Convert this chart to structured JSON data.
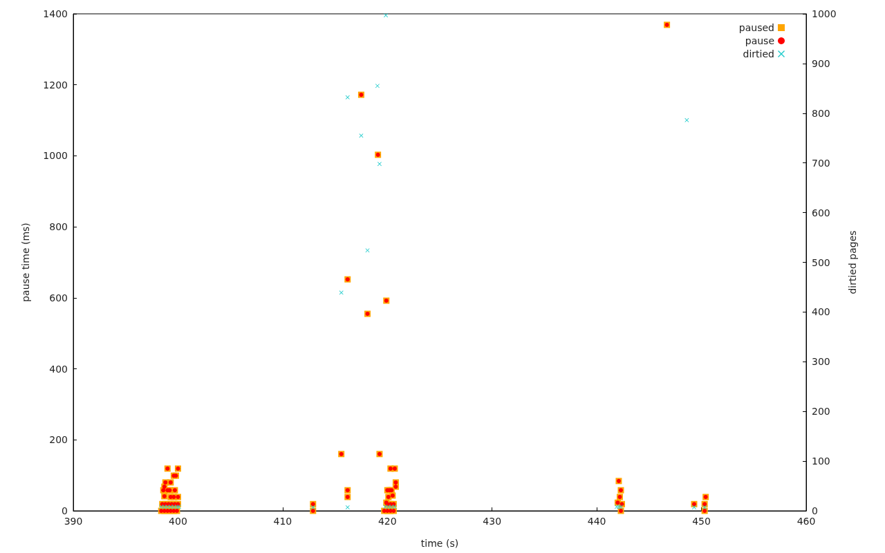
{
  "chart_data": {
    "type": "scatter",
    "xlabel": "time (s)",
    "ylabel": "pause time (ms)",
    "y2label": "dirtied pages",
    "xlim": [
      390,
      460
    ],
    "xticks": [
      390,
      400,
      410,
      420,
      430,
      440,
      450,
      460
    ],
    "ylim": [
      0,
      1400
    ],
    "yticks": [
      0,
      200,
      400,
      600,
      800,
      1000,
      1200,
      1400
    ],
    "y2lim": [
      0,
      1000
    ],
    "y2ticks": [
      0,
      100,
      200,
      300,
      400,
      500,
      600,
      700,
      800,
      900,
      1000
    ],
    "grid": false,
    "legend": "top right",
    "series": [
      {
        "name": "paused",
        "color": "#ffa500",
        "marker": "square",
        "x": [
          399.0,
          400.0,
          399.6,
          399.8,
          398.8,
          399.3,
          398.7,
          398.6,
          399.0,
          399.2,
          399.7,
          398.7,
          399.3,
          399.6,
          400.0,
          398.5,
          398.8,
          399.1,
          399.4,
          399.7,
          400.0,
          398.4,
          398.7,
          399.0,
          399.3,
          399.6,
          399.9,
          412.9,
          412.9,
          415.6,
          416.2,
          416.2,
          416.2,
          417.5,
          418.1,
          419.1,
          419.25,
          419.9,
          420.3,
          420.7,
          420.8,
          420.8,
          420.0,
          420.2,
          420.4,
          420.1,
          420.5,
          419.9,
          420.0,
          420.3,
          420.6,
          419.7,
          420.0,
          420.3,
          420.6,
          442.1,
          442.3,
          442.2,
          442.0,
          442.4,
          442.3,
          446.7,
          449.3,
          450.4,
          450.3,
          450.3
        ],
        "values": [
          119,
          119,
          99,
          99,
          80,
          80,
          68,
          58,
          58,
          58,
          58,
          41,
          39,
          39,
          39,
          19,
          19,
          19,
          19,
          19,
          19,
          0,
          0,
          0,
          0,
          0,
          0,
          19,
          0,
          160,
          652,
          58,
          39,
          1172,
          555,
          1003,
          160,
          592,
          119,
          119,
          80,
          68,
          58,
          58,
          58,
          39,
          43,
          23,
          19,
          19,
          19,
          0,
          0,
          0,
          0,
          84,
          58,
          39,
          23,
          19,
          0,
          1369,
          19,
          39,
          19,
          0
        ]
      },
      {
        "name": "pause",
        "color": "#ff0000",
        "marker": "circle",
        "x": [
          399.0,
          400.0,
          399.6,
          399.8,
          398.8,
          399.3,
          398.7,
          398.6,
          399.0,
          399.2,
          399.7,
          398.7,
          399.3,
          399.6,
          400.0,
          398.5,
          398.8,
          399.1,
          399.4,
          399.7,
          400.0,
          398.4,
          398.7,
          399.0,
          399.3,
          399.6,
          399.9,
          412.9,
          412.9,
          415.6,
          416.2,
          416.2,
          416.2,
          417.5,
          418.1,
          419.1,
          419.25,
          419.9,
          420.3,
          420.7,
          420.8,
          420.8,
          420.0,
          420.2,
          420.4,
          420.1,
          420.5,
          419.9,
          420.0,
          420.3,
          420.6,
          419.7,
          420.0,
          420.3,
          420.6,
          442.1,
          442.3,
          442.2,
          442.0,
          442.4,
          442.3,
          446.7,
          449.3,
          450.4,
          450.3,
          450.3
        ],
        "values": [
          119,
          119,
          99,
          99,
          80,
          80,
          68,
          58,
          58,
          58,
          58,
          41,
          39,
          39,
          39,
          19,
          19,
          19,
          19,
          19,
          19,
          0,
          0,
          0,
          0,
          0,
          0,
          19,
          0,
          160,
          652,
          58,
          39,
          1172,
          555,
          1003,
          160,
          592,
          119,
          119,
          80,
          68,
          58,
          58,
          58,
          39,
          43,
          23,
          19,
          19,
          19,
          0,
          0,
          0,
          0,
          84,
          58,
          39,
          23,
          19,
          0,
          1369,
          19,
          39,
          19,
          0
        ]
      },
      {
        "name": "dirtied",
        "color": "#22cccc",
        "marker": "cross",
        "axis": "y2",
        "x": [
          398.4,
          398.7,
          399.0,
          399.3,
          399.6,
          399.9,
          400.1,
          412.9,
          415.6,
          416.2,
          416.2,
          417.5,
          418.1,
          419.05,
          419.25,
          419.85,
          419.8,
          420.1,
          420.4,
          420.7,
          441.9,
          442.1,
          442.3,
          448.6,
          449.3,
          450.3
        ],
        "values": [
          8,
          8,
          8,
          8,
          8,
          8,
          8,
          7,
          439,
          832,
          7,
          755,
          524,
          855,
          698,
          997,
          8,
          8,
          8,
          8,
          8,
          8,
          8,
          786,
          7,
          7
        ]
      }
    ]
  }
}
